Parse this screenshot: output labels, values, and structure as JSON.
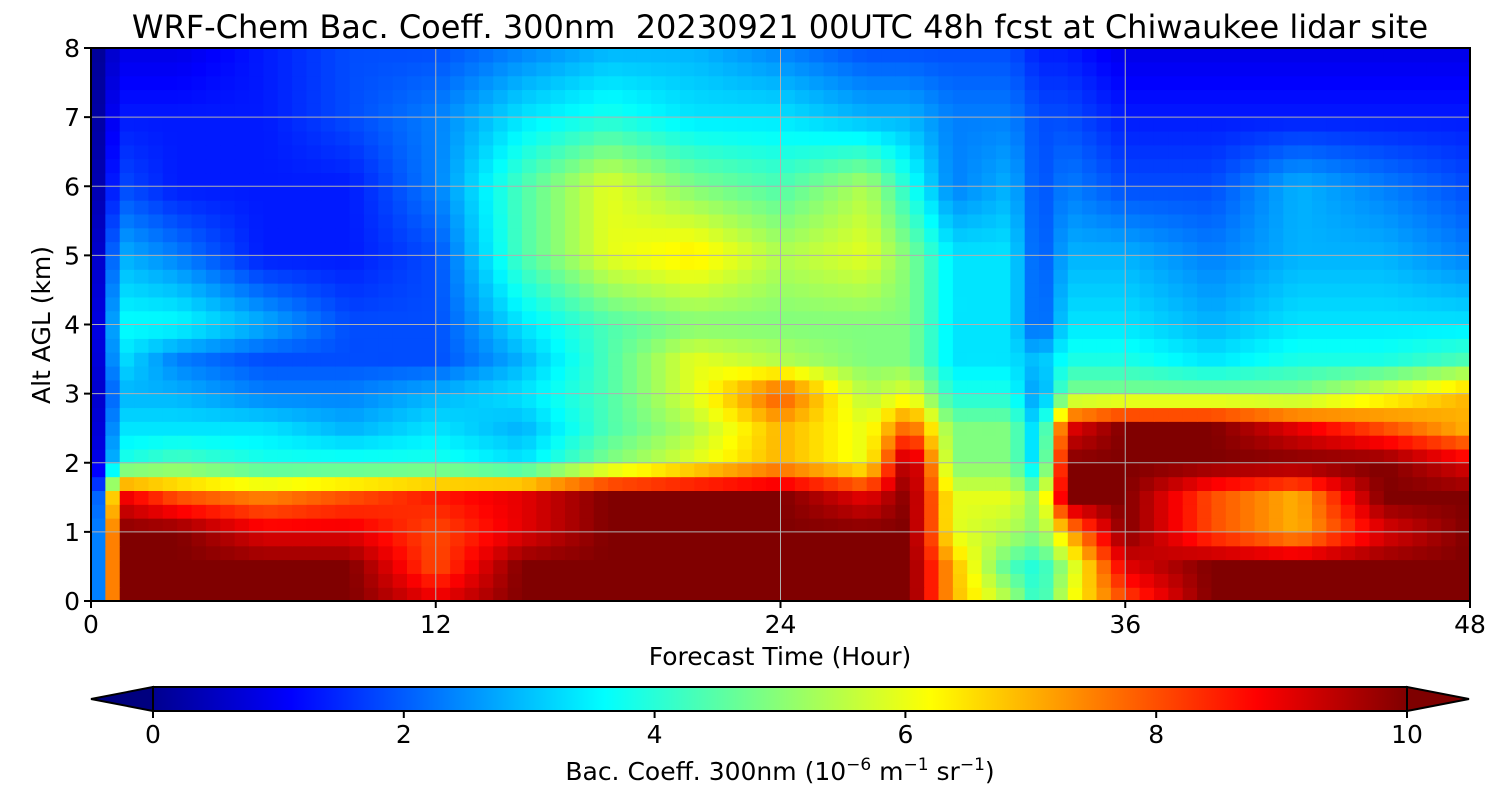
{
  "title": "WRF-Chem Bac. Coeff. 300nm  20230921 00UTC 48h fcst at Chiwaukee lidar site",
  "chart_data": {
    "type": "heatmap",
    "title": "WRF-Chem Bac. Coeff. 300nm  20230921 00UTC 48h fcst at Chiwaukee lidar site",
    "xlabel": "Forecast Time (Hour)",
    "ylabel": "Alt AGL (km)",
    "xlim": [
      0,
      48
    ],
    "ylim": [
      0,
      8
    ],
    "xticks": [
      "0",
      "12",
      "24",
      "36",
      "48"
    ],
    "yticks": [
      "0",
      "1",
      "2",
      "3",
      "4",
      "5",
      "6",
      "7",
      "8"
    ],
    "grid": true,
    "colormap": "jet",
    "colorbar": {
      "label_main": "Bac. Coeff. 300nm  (10",
      "label_exp1": "−6",
      "label_mid": " m",
      "label_exp2": "−1",
      "label_mid2": " sr",
      "label_exp3": "−1",
      "label_end": ")",
      "ticks": [
        "0",
        "2",
        "4",
        "6",
        "8",
        "10"
      ],
      "range": [
        0,
        10
      ],
      "extend": "both"
    },
    "x": [
      0,
      1,
      3,
      6,
      9,
      12,
      15,
      18,
      21,
      24,
      27,
      28.5,
      30,
      32,
      33,
      34,
      36,
      39,
      42,
      45,
      48
    ],
    "y": [
      0,
      0.5,
      1,
      1.5,
      2,
      2.5,
      3,
      3.5,
      4,
      5,
      6,
      7,
      8
    ],
    "values": [
      [
        0,
        10,
        10,
        10,
        10,
        9,
        10,
        10,
        10,
        10,
        10,
        10,
        7,
        5.5,
        4,
        6,
        8,
        10,
        10,
        10,
        10
      ],
      [
        0,
        10,
        10,
        10,
        10,
        8,
        10,
        10,
        10,
        10,
        10,
        10,
        7,
        4.5,
        4,
        5.5,
        9,
        10,
        10,
        10,
        10
      ],
      [
        0,
        10,
        10,
        9,
        9,
        8,
        9,
        10,
        10,
        10,
        10,
        10,
        6,
        5.5,
        5,
        7,
        10,
        8,
        7,
        9,
        10
      ],
      [
        0,
        9,
        8,
        7.5,
        8,
        8.5,
        9,
        10,
        10,
        10,
        9,
        10,
        6,
        6,
        5,
        10,
        10,
        8,
        7,
        10,
        10
      ],
      [
        0,
        4,
        4.5,
        4,
        4,
        4,
        3.5,
        5,
        6,
        7,
        6,
        10,
        5,
        5,
        3,
        10,
        10,
        10,
        10,
        10,
        9
      ],
      [
        0,
        3.5,
        3.5,
        3.5,
        3,
        3.5,
        3,
        4.5,
        5.5,
        7,
        6,
        8,
        5,
        5,
        3,
        9,
        10,
        10,
        9,
        8,
        7
      ],
      [
        0,
        3,
        3,
        2.5,
        2.5,
        3,
        3.5,
        4.5,
        6,
        8,
        5.5,
        6,
        4,
        4,
        2.5,
        5,
        5,
        5,
        5,
        6,
        7
      ],
      [
        0,
        3.5,
        2.5,
        2,
        2,
        2,
        3,
        4.5,
        6,
        5.5,
        5,
        5,
        3.5,
        3.5,
        3,
        4,
        4,
        3.5,
        4,
        4,
        4.5
      ],
      [
        0,
        3.8,
        3.8,
        3,
        2,
        2,
        3.5,
        4.5,
        5,
        5,
        5,
        5,
        3.5,
        3.5,
        2,
        3.5,
        3.5,
        3,
        3.5,
        3.5,
        3.5
      ],
      [
        0,
        3,
        2.5,
        1.5,
        1.5,
        2,
        4.5,
        6,
        6.5,
        5.5,
        6,
        5,
        3.5,
        3.5,
        2,
        3,
        3,
        2.5,
        3,
        3,
        2.5
      ],
      [
        0,
        2,
        1.5,
        1.5,
        1.5,
        2.5,
        4.5,
        6,
        5,
        4.5,
        5.5,
        4,
        2.5,
        3,
        2,
        2.5,
        2,
        2,
        3,
        2.5,
        2
      ],
      [
        0,
        1.5,
        1.5,
        1.5,
        2,
        2.5,
        3.5,
        4,
        3.5,
        3.5,
        3,
        3,
        2.5,
        2.5,
        2,
        2,
        1.5,
        1.5,
        1.5,
        1.5,
        1.5
      ],
      [
        0,
        1,
        1,
        1.5,
        2,
        2,
        2.5,
        3,
        3,
        2.5,
        2,
        2,
        2,
        2,
        1.5,
        1.5,
        1,
        1,
        1,
        1,
        1
      ]
    ]
  }
}
